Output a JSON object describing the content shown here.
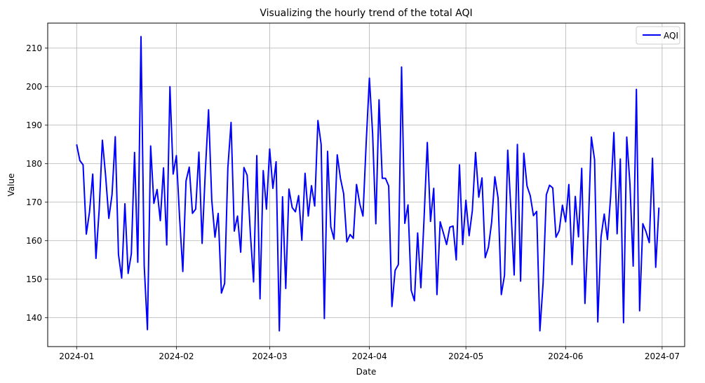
{
  "chart_data": {
    "type": "line",
    "title": "Visualizing the hourly trend of the total AQI",
    "xlabel": "Date",
    "ylabel": "Value",
    "xlim": [
      "2023-12-23",
      "2024-07-08"
    ],
    "ylim": [
      132.5,
      216.5
    ],
    "xticks": [
      "2024-01",
      "2024-02",
      "2024-03",
      "2024-04",
      "2024-05",
      "2024-06",
      "2024-07"
    ],
    "yticks": [
      140,
      150,
      160,
      170,
      180,
      190,
      200,
      210
    ],
    "grid": true,
    "legend_position": "top-right",
    "series": [
      {
        "name": "AQI",
        "color": "#0000ff",
        "start_date": "2024-01-01",
        "values": [
          185.0,
          180.8,
          179.7,
          161.7,
          167.5,
          177.3,
          155.4,
          168.0,
          186.1,
          176.9,
          165.8,
          172.0,
          187.0,
          156.4,
          150.3,
          169.6,
          151.5,
          156.6,
          182.9,
          154.4,
          213.0,
          153.5,
          136.9,
          184.6,
          169.7,
          173.3,
          165.2,
          178.9,
          158.9,
          200.0,
          177.3,
          182.1,
          166.0,
          152.0,
          175.5,
          179.1,
          167.1,
          168.2,
          183.0,
          159.3,
          178.0,
          194.0,
          170.5,
          160.9,
          167.1,
          146.4,
          148.9,
          178.9,
          190.7,
          162.5,
          166.4,
          157.0,
          179.0,
          177.0,
          161.9,
          149.3,
          182.1,
          144.9,
          178.2,
          168.2,
          183.8,
          173.6,
          180.5,
          136.6,
          171.4,
          147.6,
          173.4,
          168.6,
          167.5,
          171.7,
          160.1,
          177.5,
          166.4,
          174.3,
          169.0,
          191.2,
          185.0,
          139.8,
          183.2,
          163.6,
          160.4,
          182.3,
          176.2,
          172.2,
          159.7,
          161.6,
          160.6,
          174.6,
          169.6,
          166.4,
          185.4,
          202.2,
          187.8,
          164.4,
          196.6,
          176.2,
          176.2,
          174.2,
          142.9,
          152.3,
          153.8,
          205.1,
          164.5,
          169.3,
          147.1,
          144.4,
          162.0,
          147.8,
          165.9,
          185.5,
          165.0,
          173.6,
          146.0,
          164.9,
          162.0,
          159.0,
          163.5,
          163.8,
          155.0,
          179.7,
          159.0,
          170.5,
          161.3,
          167.8,
          182.9,
          171.3,
          176.3,
          155.6,
          158.3,
          164.8,
          176.6,
          171.1,
          146.0,
          151.0,
          183.5,
          168.0,
          151.1,
          185.0,
          149.5,
          182.7,
          174.2,
          171.7,
          166.5,
          167.6,
          136.6,
          149.0,
          171.9,
          174.4,
          173.7,
          160.9,
          162.6,
          169.2,
          164.9,
          174.6,
          153.8,
          171.5,
          161.0,
          178.8,
          143.7,
          162.6,
          186.9,
          181.0,
          138.9,
          160.9,
          166.9,
          160.3,
          171.5,
          188.1,
          161.8,
          181.2,
          138.7,
          186.9,
          174.6,
          153.4,
          199.3,
          141.8,
          164.4,
          162.3,
          159.5,
          181.4,
          153.1,
          168.6
        ]
      }
    ]
  }
}
